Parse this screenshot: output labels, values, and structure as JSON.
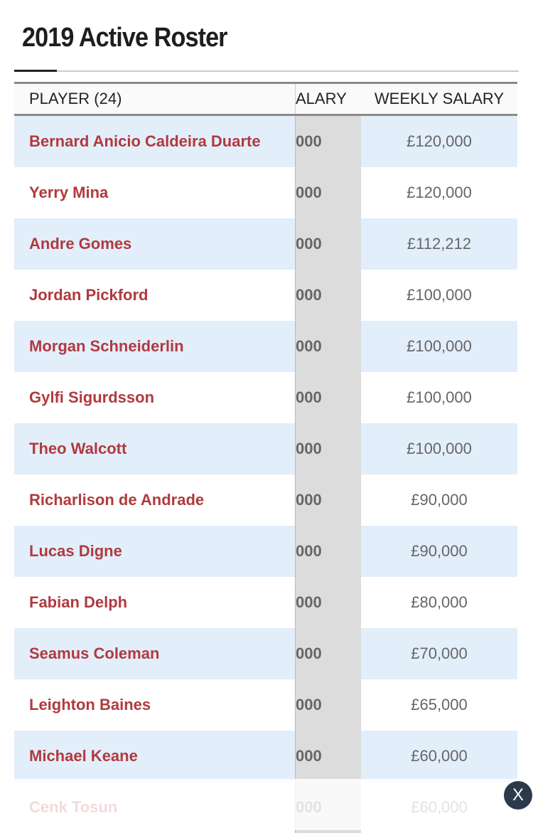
{
  "title": "2019 Active Roster",
  "table": {
    "headers": [
      "PLAYER (24)",
      "ALARY",
      "WEEKLY SALARY"
    ],
    "rows": [
      [
        "Bernard Anicio Caldeira Duarte",
        "000",
        "£120,000"
      ],
      [
        "Yerry Mina",
        "000",
        "£120,000"
      ],
      [
        "Andre Gomes",
        "000",
        "£112,212"
      ],
      [
        "Jordan Pickford",
        "000",
        "£100,000"
      ],
      [
        "Morgan Schneiderlin",
        "000",
        "£100,000"
      ],
      [
        "Gylfi Sigurdsson",
        "000",
        "£100,000"
      ],
      [
        "Theo Walcott",
        "000",
        "£100,000"
      ],
      [
        "Richarlison de Andrade",
        "000",
        "£90,000"
      ],
      [
        "Lucas Digne",
        "000",
        "£90,000"
      ],
      [
        "Fabian Delph",
        "000",
        "£80,000"
      ],
      [
        "Seamus Coleman",
        "000",
        "£70,000"
      ],
      [
        "Leighton Baines",
        "000",
        "£65,000"
      ],
      [
        "Michael Keane",
        "000",
        "£60,000"
      ],
      [
        "Cenk Tosun",
        "000",
        "£60,000"
      ]
    ]
  },
  "close_label": "X",
  "colors": {
    "player_link": "#b03a3e",
    "row_alt": "#e3eefb"
  }
}
